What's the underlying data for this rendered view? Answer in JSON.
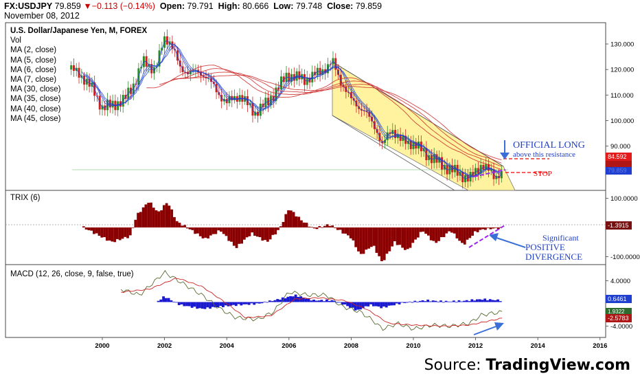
{
  "header": {
    "symbol": "FX:USDJPY",
    "last": "79.859",
    "change": "▼−0.113 (−0.14%)",
    "open_label": "Open:",
    "open": "79.791",
    "high_label": "High:",
    "high": "80.666",
    "low_label": "Low:",
    "low": "79.748",
    "close_label": "Close:",
    "close": "79.859",
    "date": "November 08, 2012"
  },
  "legend": {
    "title": "U.S. Dollar/Japanese Yen, M, FOREX",
    "items": [
      "Vol",
      "MA (2, close)",
      "MA (5, close)",
      "MA (6, close)",
      "MA (7, close)",
      "MA (30, close)",
      "MA (35, close)",
      "MA (40, close)",
      "MA (45, close)"
    ]
  },
  "annotations": {
    "official_long_1": "OFFICIAL LONG",
    "official_long_2": "above this resistance",
    "stop": "STOP",
    "sig_1": "Significant",
    "sig_2": "POSITIVE",
    "sig_3": "DIVERGENCE"
  },
  "trix_title": "TRIX (6)",
  "macd_title": "MACD (12, 26, close, 9, false, true)",
  "source": {
    "prefix": "Source: ",
    "brand": "TradingView.com"
  },
  "colors": {
    "up": "#2e8b2e",
    "down": "#cc2222",
    "ma_fast": "#1a3fd0",
    "ma_slow": "#cc2222",
    "hist": "#8b0000",
    "macd_hist": "#1a1ad0",
    "channel": "#fff3a0"
  },
  "chart_data": [
    {
      "type": "candlestick",
      "pane": "price",
      "title": "U.S. Dollar/Japanese Yen, M, FOREX",
      "x_ticks": [
        "2000",
        "2002",
        "2004",
        "2006",
        "2008",
        "2010",
        "2012",
        "2014",
        "2016"
      ],
      "y_ticks": [
        "130.000",
        "120.000",
        "110.000",
        "100.000",
        "90.000"
      ],
      "ylim": [
        74,
        137
      ],
      "price_labels": [
        "84.592",
        "79.859"
      ],
      "anchors": [
        {
          "t": 1999.0,
          "v": 120
        },
        {
          "t": 1999.3,
          "v": 118
        },
        {
          "t": 1999.7,
          "v": 112
        },
        {
          "t": 2000.0,
          "v": 105
        },
        {
          "t": 2000.3,
          "v": 106
        },
        {
          "t": 2000.7,
          "v": 108
        },
        {
          "t": 2001.0,
          "v": 114
        },
        {
          "t": 2001.3,
          "v": 123
        },
        {
          "t": 2001.7,
          "v": 120
        },
        {
          "t": 2002.0,
          "v": 132
        },
        {
          "t": 2002.2,
          "v": 131
        },
        {
          "t": 2002.5,
          "v": 120
        },
        {
          "t": 2002.9,
          "v": 119
        },
        {
          "t": 2003.3,
          "v": 118
        },
        {
          "t": 2003.7,
          "v": 111
        },
        {
          "t": 2004.0,
          "v": 107
        },
        {
          "t": 2004.4,
          "v": 110
        },
        {
          "t": 2004.9,
          "v": 103
        },
        {
          "t": 2005.3,
          "v": 107
        },
        {
          "t": 2005.6,
          "v": 112
        },
        {
          "t": 2005.95,
          "v": 118
        },
        {
          "t": 2006.5,
          "v": 116
        },
        {
          "t": 2007.0,
          "v": 119
        },
        {
          "t": 2007.4,
          "v": 123
        },
        {
          "t": 2007.6,
          "v": 117
        },
        {
          "t": 2008.0,
          "v": 108
        },
        {
          "t": 2008.4,
          "v": 104
        },
        {
          "t": 2008.8,
          "v": 97
        },
        {
          "t": 2009.0,
          "v": 90
        },
        {
          "t": 2009.3,
          "v": 97
        },
        {
          "t": 2009.6,
          "v": 92
        },
        {
          "t": 2010.0,
          "v": 91
        },
        {
          "t": 2010.5,
          "v": 86
        },
        {
          "t": 2011.0,
          "v": 82
        },
        {
          "t": 2011.5,
          "v": 79
        },
        {
          "t": 2011.8,
          "v": 77
        },
        {
          "t": 2012.2,
          "v": 83
        },
        {
          "t": 2012.6,
          "v": 78
        },
        {
          "t": 2012.85,
          "v": 79.9
        }
      ]
    },
    {
      "type": "bar",
      "pane": "trix",
      "title": "TRIX (6)",
      "y_ticks": [
        "100.0000",
        "-100.0000"
      ],
      "ylim": [
        -120,
        115
      ],
      "last_label": "-1.3915",
      "anchors": [
        {
          "t": 1999.4,
          "v": 0
        },
        {
          "t": 2000.3,
          "v": -50
        },
        {
          "t": 2000.9,
          "v": -30
        },
        {
          "t": 2001.1,
          "v": 40
        },
        {
          "t": 2001.5,
          "v": 90
        },
        {
          "t": 2001.8,
          "v": 50
        },
        {
          "t": 2002.1,
          "v": 88
        },
        {
          "t": 2002.4,
          "v": 20
        },
        {
          "t": 2002.8,
          "v": -5
        },
        {
          "t": 2003.3,
          "v": -40
        },
        {
          "t": 2003.8,
          "v": -10
        },
        {
          "t": 2004.3,
          "v": -70
        },
        {
          "t": 2004.8,
          "v": -20
        },
        {
          "t": 2005.3,
          "v": -50
        },
        {
          "t": 2005.7,
          "v": -5
        },
        {
          "t": 2006.0,
          "v": 65
        },
        {
          "t": 2006.4,
          "v": 25
        },
        {
          "t": 2006.8,
          "v": -5
        },
        {
          "t": 2007.3,
          "v": 10
        },
        {
          "t": 2007.7,
          "v": -15
        },
        {
          "t": 2008.0,
          "v": -35
        },
        {
          "t": 2008.3,
          "v": -95
        },
        {
          "t": 2008.7,
          "v": -60
        },
        {
          "t": 2009.0,
          "v": -120
        },
        {
          "t": 2009.4,
          "v": -50
        },
        {
          "t": 2009.8,
          "v": -80
        },
        {
          "t": 2010.3,
          "v": -10
        },
        {
          "t": 2010.7,
          "v": -55
        },
        {
          "t": 2011.2,
          "v": -10
        },
        {
          "t": 2011.6,
          "v": -60
        },
        {
          "t": 2012.0,
          "v": -15
        },
        {
          "t": 2012.3,
          "v": -5
        },
        {
          "t": 2012.85,
          "v": -1.4
        }
      ]
    },
    {
      "type": "line",
      "pane": "macd",
      "title": "MACD (12, 26, close, 9, false, true)",
      "y_ticks": [
        "4.0000",
        "-4.0000"
      ],
      "ylim": [
        -5.5,
        6
      ],
      "last_labels": [
        "0.6461",
        "1.9322",
        "-2.5783"
      ],
      "macd_anchors": [
        {
          "t": 2000.6,
          "v": 2.5
        },
        {
          "t": 2001.2,
          "v": 1.5
        },
        {
          "t": 2002.0,
          "v": 5.5
        },
        {
          "t": 2002.6,
          "v": 3.5
        },
        {
          "t": 2003.2,
          "v": 1.5
        },
        {
          "t": 2003.8,
          "v": -1.0
        },
        {
          "t": 2004.3,
          "v": -2.5
        },
        {
          "t": 2005.0,
          "v": -2.8
        },
        {
          "t": 2005.5,
          "v": -1.5
        },
        {
          "t": 2006.0,
          "v": 2.0
        },
        {
          "t": 2006.6,
          "v": 1.5
        },
        {
          "t": 2007.2,
          "v": 1.5
        },
        {
          "t": 2007.7,
          "v": -0.5
        },
        {
          "t": 2008.3,
          "v": -1.5
        },
        {
          "t": 2008.7,
          "v": -3.0
        },
        {
          "t": 2009.0,
          "v": -4.5
        },
        {
          "t": 2009.5,
          "v": -3.5
        },
        {
          "t": 2010.0,
          "v": -4.5
        },
        {
          "t": 2010.6,
          "v": -3.8
        },
        {
          "t": 2011.2,
          "v": -4.0
        },
        {
          "t": 2011.8,
          "v": -3.5
        },
        {
          "t": 2012.2,
          "v": -2.0
        },
        {
          "t": 2012.85,
          "v": -1.5
        }
      ],
      "signal_anchors": [
        {
          "t": 2000.6,
          "v": 2.0
        },
        {
          "t": 2001.5,
          "v": 2.5
        },
        {
          "t": 2002.4,
          "v": 4.5
        },
        {
          "t": 2003.2,
          "v": 3.0
        },
        {
          "t": 2004.0,
          "v": 0.0
        },
        {
          "t": 2004.6,
          "v": -2.5
        },
        {
          "t": 2005.4,
          "v": -2.2
        },
        {
          "t": 2006.2,
          "v": 0.8
        },
        {
          "t": 2007.0,
          "v": 1.0
        },
        {
          "t": 2007.8,
          "v": 0.5
        },
        {
          "t": 2008.5,
          "v": -1.0
        },
        {
          "t": 2009.2,
          "v": -3.5
        },
        {
          "t": 2010.0,
          "v": -3.8
        },
        {
          "t": 2011.0,
          "v": -4.0
        },
        {
          "t": 2011.8,
          "v": -3.8
        },
        {
          "t": 2012.85,
          "v": -2.6
        }
      ],
      "hist_anchors": [
        {
          "t": 2001.8,
          "v": 0.2
        },
        {
          "t": 2002.0,
          "v": 1.0
        },
        {
          "t": 2002.5,
          "v": -0.5
        },
        {
          "t": 2003.2,
          "v": -1.2
        },
        {
          "t": 2003.8,
          "v": -0.8
        },
        {
          "t": 2004.4,
          "v": -0.5
        },
        {
          "t": 2005.0,
          "v": -0.3
        },
        {
          "t": 2005.6,
          "v": 0.4
        },
        {
          "t": 2006.2,
          "v": 1.2
        },
        {
          "t": 2006.8,
          "v": 0.3
        },
        {
          "t": 2007.4,
          "v": 0.3
        },
        {
          "t": 2007.8,
          "v": -0.5
        },
        {
          "t": 2008.2,
          "v": -1.5
        },
        {
          "t": 2008.6,
          "v": -0.5
        },
        {
          "t": 2009.0,
          "v": -1.0
        },
        {
          "t": 2009.6,
          "v": -0.2
        },
        {
          "t": 2010.4,
          "v": 0.3
        },
        {
          "t": 2011.0,
          "v": 0.1
        },
        {
          "t": 2011.6,
          "v": 0.2
        },
        {
          "t": 2012.2,
          "v": 0.5
        },
        {
          "t": 2012.85,
          "v": 0.3
        }
      ]
    }
  ]
}
